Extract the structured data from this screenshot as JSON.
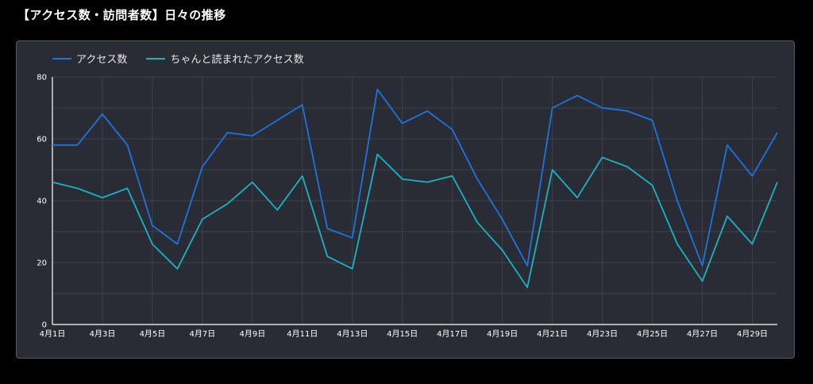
{
  "page": {
    "title": "【アクセス数・訪問者数】日々の推移"
  },
  "colors": {
    "background": "#000000",
    "panel": "#2a2c35",
    "grid": "#3d414c",
    "series1": "#1b74e0",
    "series2": "#17b4c0"
  },
  "chart_data": {
    "type": "line",
    "title": "",
    "xlabel": "",
    "ylabel": "",
    "ylim": [
      0,
      80
    ],
    "yticks": [
      0,
      20,
      40,
      60,
      80
    ],
    "grid": true,
    "legend_position": "top-left",
    "x": [
      "4月1日",
      "4月2日",
      "4月3日",
      "4月4日",
      "4月5日",
      "4月6日",
      "4月7日",
      "4月8日",
      "4月9日",
      "4月10日",
      "4月11日",
      "4月12日",
      "4月13日",
      "4月14日",
      "4月15日",
      "4月16日",
      "4月17日",
      "4月18日",
      "4月19日",
      "4月20日",
      "4月21日",
      "4月22日",
      "4月23日",
      "4月24日",
      "4月25日",
      "4月26日",
      "4月27日",
      "4月28日",
      "4月29日",
      "4月30日"
    ],
    "xtick_labels": [
      "4月1日",
      "4月3日",
      "4月5日",
      "4月7日",
      "4月9日",
      "4月11日",
      "4月13日",
      "4月15日",
      "4月17日",
      "4月19日",
      "4月21日",
      "4月23日",
      "4月25日",
      "4月27日",
      "4月29日"
    ],
    "series": [
      {
        "name": "アクセス数",
        "color": "#1b74e0",
        "values": [
          58,
          58,
          68,
          58,
          32,
          26,
          51,
          62,
          61,
          66,
          71,
          31,
          28,
          76,
          65,
          69,
          63,
          47,
          34,
          19,
          70,
          74,
          70,
          69,
          66,
          40,
          19,
          58,
          48,
          62
        ]
      },
      {
        "name": "ちゃんと読まれたアクセス数",
        "color": "#17b4c0",
        "values": [
          46,
          44,
          41,
          44,
          26,
          18,
          34,
          39,
          46,
          37,
          48,
          22,
          18,
          55,
          47,
          46,
          48,
          33,
          24,
          12,
          50,
          41,
          54,
          51,
          45,
          26,
          14,
          35,
          26,
          46
        ]
      }
    ]
  }
}
